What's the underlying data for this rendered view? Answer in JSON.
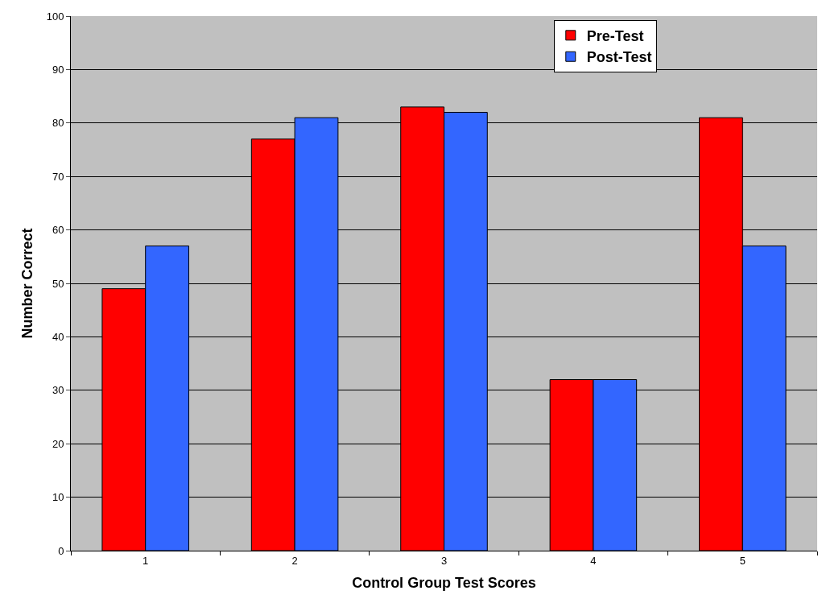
{
  "chart_data": {
    "type": "bar",
    "xlabel": "Control Group Test Scores",
    "ylabel": "Number Correct",
    "categories": [
      "1",
      "2",
      "3",
      "4",
      "5"
    ],
    "series": [
      {
        "name": "Pre-Test",
        "color": "#ff0000",
        "values": [
          49,
          77,
          83,
          32,
          81
        ]
      },
      {
        "name": "Post-Test",
        "color": "#3366ff",
        "values": [
          57,
          81,
          82,
          32,
          57
        ]
      }
    ],
    "ylim": [
      0,
      100
    ],
    "yticks": [
      0,
      10,
      20,
      30,
      40,
      50,
      60,
      70,
      80,
      90,
      100
    ],
    "grid": "y",
    "legend": "top right"
  }
}
